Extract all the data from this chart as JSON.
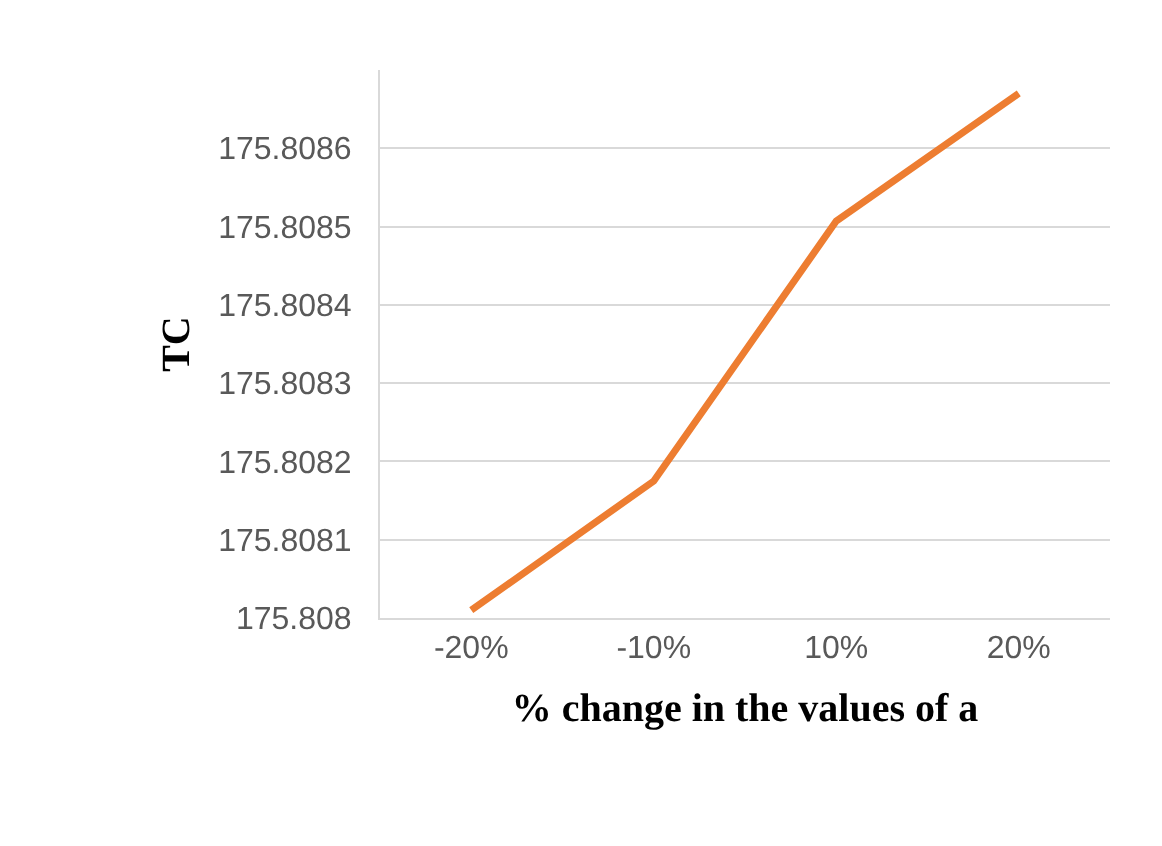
{
  "chart_data": {
    "type": "line",
    "xlabel": "% change in the values of a",
    "ylabel": "TC",
    "categories": [
      "-20%",
      "-10%",
      "10%",
      "20%"
    ],
    "series": [
      {
        "color": "#ed7d31",
        "values": [
          175.80801,
          175.808175,
          175.808507,
          175.80867
        ]
      }
    ],
    "ylim": [
      175.808,
      175.8087
    ],
    "yticks": [
      175.808,
      175.8081,
      175.8082,
      175.8083,
      175.8084,
      175.8085,
      175.8086
    ],
    "grid": "y",
    "legend": false,
    "marker": "none",
    "line_style": "solid"
  }
}
